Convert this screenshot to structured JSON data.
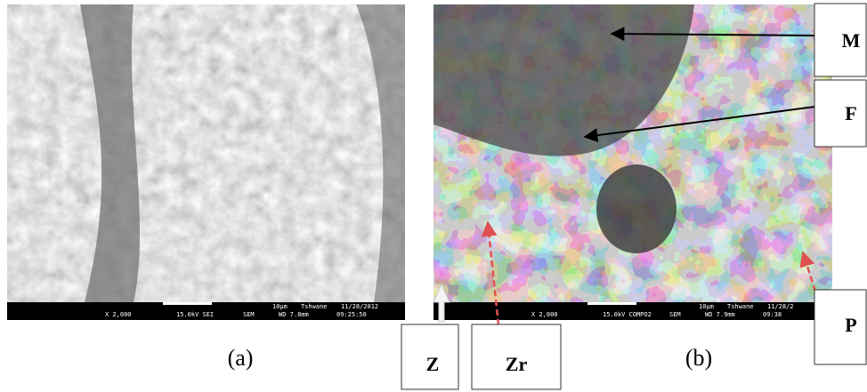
{
  "panels": [
    {
      "label": "(a)",
      "scale": "10µm",
      "site": "Tshwane",
      "date": "11/28/2012",
      "info": [
        "X 2,000",
        "15.0kV SEI",
        "SEM",
        "WD 7.8mm",
        "09:25:50"
      ]
    },
    {
      "label": "(b)",
      "scale": "10µm",
      "site": "Tshwane",
      "date": "11/28/2",
      "info": [
        "X 2,000",
        "15.0kV COMPO2",
        "SEM",
        "WD 7.9mm",
        "09:38"
      ]
    }
  ],
  "annotations": [
    "M",
    "F",
    "P",
    "Z",
    "Zr"
  ]
}
